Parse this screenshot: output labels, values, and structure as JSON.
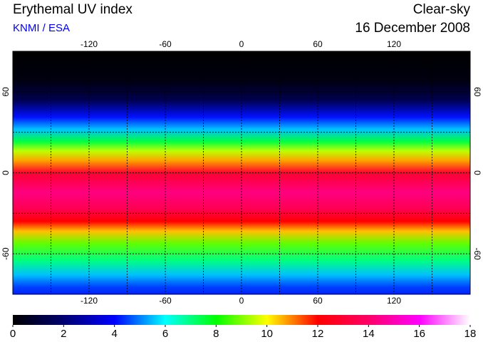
{
  "header": {
    "title": "Erythemal UV index",
    "source": "KNMI / ESA",
    "condition": "Clear-sky",
    "date": "16 December 2008"
  },
  "map": {
    "lonlim": [
      -180,
      180
    ],
    "latlim": [
      90,
      -90
    ],
    "lon_ticks": [
      -120,
      -60,
      0,
      60,
      120
    ],
    "lat_ticks": [
      60,
      0,
      -60
    ],
    "grid_lons": [
      -150,
      -120,
      -90,
      -60,
      -30,
      0,
      30,
      60,
      90,
      120,
      150
    ],
    "grid_lats": [
      60,
      30,
      0,
      -30,
      -60
    ]
  },
  "colorbar": {
    "lim": [
      0,
      18
    ],
    "ticks": [
      0,
      2,
      4,
      6,
      8,
      10,
      12,
      14,
      16,
      18
    ],
    "colors": [
      "#000000",
      "#000070",
      "#0000ff",
      "#00ffff",
      "#00ff00",
      "#ffff00",
      "#ff0000",
      "#ff0066",
      "#ff00ff",
      "#ffffff"
    ]
  }
}
